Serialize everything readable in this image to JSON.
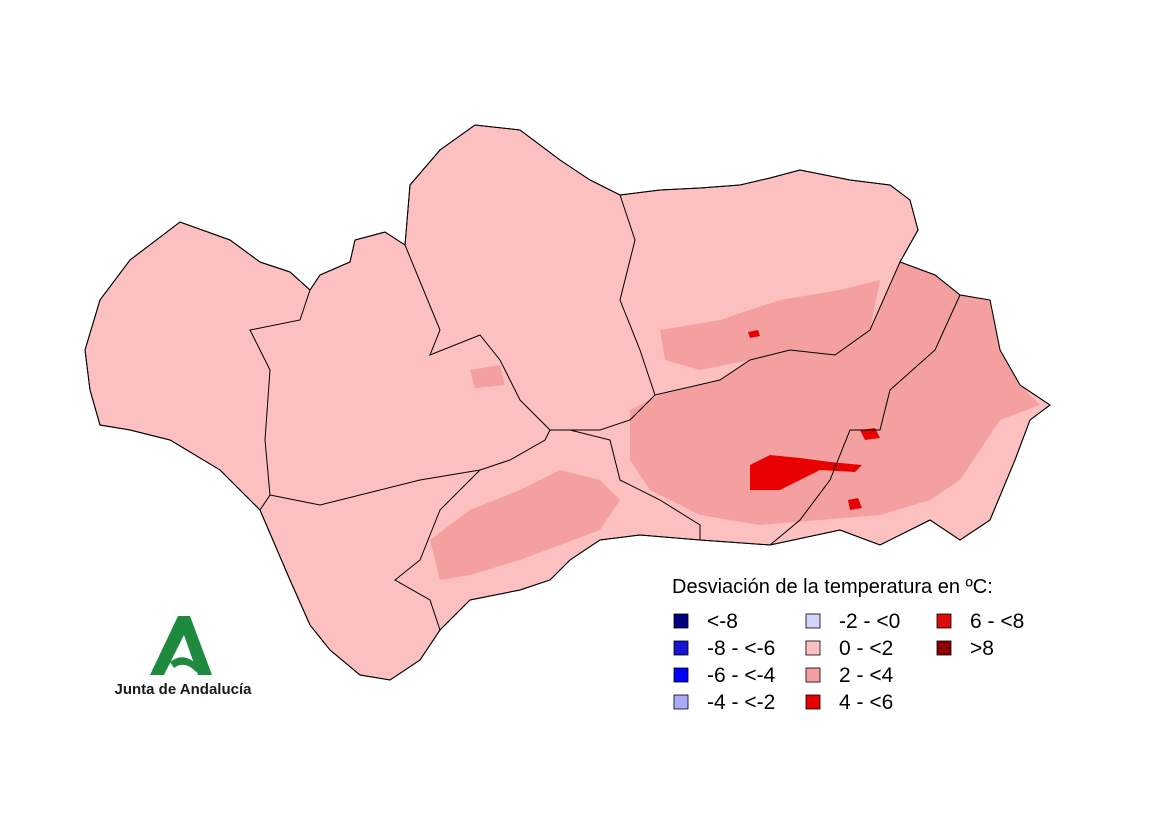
{
  "legend": {
    "title": "Desviación de la temperatura en ºC:",
    "items": [
      {
        "label": "<-8",
        "color": "#00007f"
      },
      {
        "label": "-8 - <-6",
        "color": "#1414d2"
      },
      {
        "label": "-6 - <-4",
        "color": "#0000ff"
      },
      {
        "label": "-4 - <-2",
        "color": "#aaaaff"
      },
      {
        "label": "-2 - <0",
        "color": "#d2d2ff"
      },
      {
        "label": "0 - <2",
        "color": "#fcc0c0"
      },
      {
        "label": "2 - <4",
        "color": "#f4a0a0"
      },
      {
        "label": "4 - <6",
        "color": "#e80000"
      },
      {
        "label": "6 - <8",
        "color": "#dc0a0a"
      },
      {
        "label": ">8",
        "color": "#8b0000"
      }
    ]
  },
  "logo": {
    "text": "Junta de Andalucía"
  }
}
